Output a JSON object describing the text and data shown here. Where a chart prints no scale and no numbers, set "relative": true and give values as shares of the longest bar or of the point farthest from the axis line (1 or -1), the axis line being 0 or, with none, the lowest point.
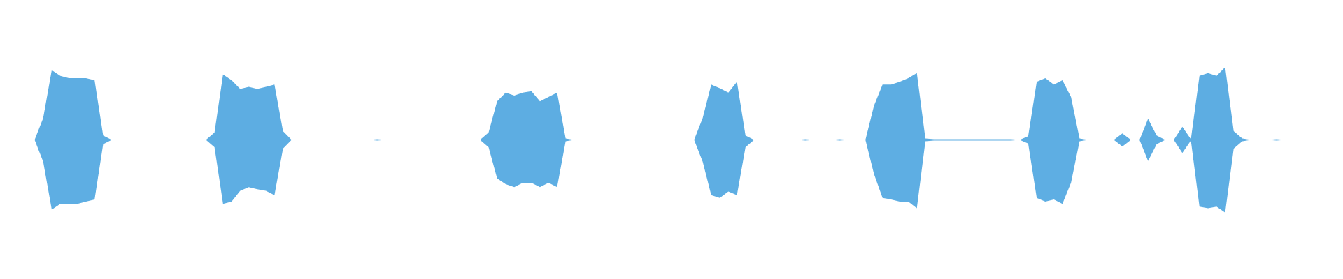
{
  "chart_data": {
    "type": "area",
    "relative": true,
    "tick_labels": false,
    "ref_lines": [
      {
        "axis": "y",
        "value": 0,
        "color": "#5dade2"
      }
    ],
    "categories": [
      null,
      null,
      null,
      null,
      null,
      null,
      null,
      null,
      null,
      null,
      null,
      null,
      null,
      null,
      null,
      null,
      null,
      null,
      null,
      null,
      null,
      null,
      null,
      null,
      null,
      null,
      null,
      null,
      null,
      null,
      null,
      null,
      null,
      null,
      null,
      null,
      null,
      null,
      null,
      null,
      null,
      null,
      null,
      null,
      null,
      null,
      null,
      null,
      null,
      null,
      null,
      null,
      null,
      null,
      null,
      null,
      null,
      null,
      null,
      null,
      null,
      null,
      null,
      null,
      null,
      null,
      null,
      null,
      null,
      null,
      null,
      null,
      null,
      null,
      null,
      null,
      null,
      null,
      null,
      null,
      null,
      null,
      null,
      null,
      null,
      null,
      null,
      null,
      null,
      null,
      null,
      null,
      null,
      null,
      null,
      null,
      null,
      null,
      null,
      null,
      null,
      null,
      null,
      null,
      null,
      null,
      null,
      null,
      null,
      null,
      null,
      null,
      null,
      null,
      null,
      null,
      null,
      null,
      null,
      null,
      null,
      null,
      null,
      null,
      null,
      null,
      null,
      null,
      null,
      null,
      null,
      null,
      null,
      null,
      null,
      null,
      null,
      null,
      null,
      null,
      null,
      null,
      null,
      null,
      null,
      null,
      null,
      null,
      null,
      null,
      null,
      null,
      null,
      null,
      null,
      null,
      null
    ],
    "series": [
      {
        "color": "#5dade2",
        "values": [
          0,
          0,
          0,
          0,
          0,
          0.3,
          0.96,
          0.88,
          0.85,
          0.85,
          0.85,
          0.82,
          0.06,
          0,
          0,
          0,
          0,
          0,
          0,
          0,
          0,
          0,
          0,
          0,
          0,
          0.1,
          0.9,
          0.82,
          0.7,
          0.73,
          0.7,
          0.73,
          0.76,
          0.12,
          0,
          0,
          0,
          0,
          0,
          0,
          0,
          0,
          0,
          0,
          0.01,
          0,
          0,
          0,
          0,
          0,
          0,
          0,
          0,
          0,
          0,
          0,
          0,
          0.1,
          0.53,
          0.65,
          0.61,
          0.65,
          0.67,
          0.53,
          0.59,
          0.65,
          0.02,
          0,
          0,
          0,
          0,
          0,
          0,
          0,
          0,
          0,
          0,
          0,
          0,
          0,
          0,
          0,
          0.3,
          0.76,
          0.71,
          0.65,
          0.8,
          0.06,
          0,
          0,
          0,
          0,
          0,
          0,
          0.01,
          0,
          0,
          0,
          0.01,
          0,
          0,
          0,
          0.47,
          0.76,
          0.76,
          0.8,
          0.85,
          0.92,
          0.02,
          0.01,
          0.01,
          0.01,
          0.01,
          0.01,
          0.01,
          0.01,
          0.01,
          0.01,
          0.01,
          0,
          0.05,
          0.8,
          0.85,
          0.76,
          0.82,
          0.59,
          0.02,
          0,
          0,
          0,
          0,
          0.09,
          0,
          0,
          0.29,
          0.06,
          0,
          0,
          0.18,
          0.01,
          0.88,
          0.92,
          0.88,
          1,
          0.12,
          0.02,
          0,
          0,
          0,
          0.01,
          0,
          0,
          0,
          0,
          0,
          0,
          0
        ]
      },
      {
        "color": "#5eaee3",
        "values": [
          0,
          0,
          0,
          0,
          0,
          -0.3,
          -0.96,
          -0.88,
          -0.88,
          -0.88,
          -0.85,
          -0.82,
          -0.06,
          0,
          0,
          0,
          0,
          0,
          0,
          0,
          0,
          0,
          0,
          0,
          0,
          -0.1,
          -0.88,
          -0.85,
          -0.7,
          -0.65,
          -0.68,
          -0.7,
          -0.76,
          -0.12,
          0,
          0,
          0,
          0,
          0,
          0,
          0,
          0,
          0,
          0,
          -0.01,
          0,
          0,
          0,
          0,
          0,
          0,
          0,
          0,
          0,
          0,
          0,
          0,
          -0.1,
          -0.53,
          -0.61,
          -0.65,
          -0.59,
          -0.59,
          -0.65,
          -0.59,
          -0.65,
          -0.02,
          0,
          0,
          0,
          0,
          0,
          0,
          0,
          0,
          0,
          0,
          0,
          0,
          0,
          0,
          0,
          -0.3,
          -0.76,
          -0.8,
          -0.71,
          -0.76,
          -0.1,
          0,
          0,
          0,
          0,
          0,
          0,
          -0.01,
          0,
          0,
          0,
          -0.01,
          0,
          0,
          0,
          -0.47,
          -0.8,
          -0.82,
          -0.85,
          -0.85,
          -0.94,
          -0.02,
          -0.01,
          -0.01,
          -0.01,
          -0.01,
          -0.01,
          -0.01,
          -0.01,
          -0.01,
          -0.01,
          -0.01,
          0,
          -0.05,
          -0.8,
          -0.85,
          -0.82,
          -0.88,
          -0.59,
          -0.02,
          0,
          0,
          0,
          0,
          -0.09,
          0,
          0,
          -0.29,
          -0.06,
          0,
          0,
          -0.18,
          -0.01,
          -0.92,
          -0.94,
          -0.92,
          -1,
          -0.12,
          -0.02,
          0,
          0,
          0,
          -0.01,
          0,
          0,
          0,
          0,
          0,
          0,
          0
        ]
      }
    ]
  }
}
